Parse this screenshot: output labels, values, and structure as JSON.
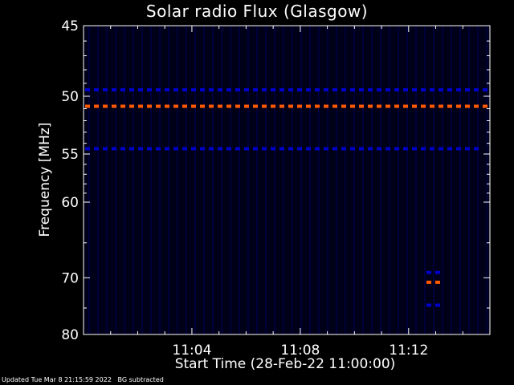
{
  "chart_data": {
    "type": "heatmap",
    "title": "Solar radio Flux (Glasgow)",
    "ylabel": "Frequency [MHz]",
    "xlabel": "Start Time (28-Feb-22 11:00:00)",
    "y_ticks": [
      "45",
      "50",
      "55",
      "60",
      "70",
      "80"
    ],
    "x_ticks": [
      "11:04",
      "11:08",
      "11:12"
    ],
    "ylim": [
      45,
      80
    ],
    "y_scale": "reciprocal",
    "xlim_minutes": [
      0,
      15
    ],
    "x_tick_minutes": [
      4,
      8,
      12
    ],
    "grid": false,
    "background_color": "#000000",
    "plot_fill_color": "#000018",
    "colors": {
      "low": "#0000cc",
      "high": "#ff5a00"
    },
    "features": [
      {
        "label": "persistent emission ~50.8 MHz",
        "freq_mhz": 50.8,
        "t_start_min": 0,
        "t_end_min": 15,
        "intensity": "high"
      },
      {
        "label": "persistent emission ~49.5 MHz",
        "freq_mhz": 49.5,
        "t_start_min": 0,
        "t_end_min": 15,
        "intensity": "low"
      },
      {
        "label": "persistent emission ~54.5 MHz",
        "freq_mhz": 54.5,
        "t_start_min": 0,
        "t_end_min": 14.5,
        "intensity": "low"
      },
      {
        "label": "burst ~69 MHz",
        "freq_mhz": 69.2,
        "t_start_min": 12.6,
        "t_end_min": 13.1,
        "intensity": "low"
      },
      {
        "label": "burst ~70.7 MHz",
        "freq_mhz": 70.7,
        "t_start_min": 12.6,
        "t_end_min": 13.1,
        "intensity": "high"
      },
      {
        "label": "burst ~74.5 MHz",
        "freq_mhz": 74.5,
        "t_start_min": 12.6,
        "t_end_min": 13.1,
        "intensity": "low"
      }
    ]
  },
  "footer": {
    "updated": "Updated Tue Mar  8 21:15:59 2022",
    "note": "BG subtracted"
  }
}
